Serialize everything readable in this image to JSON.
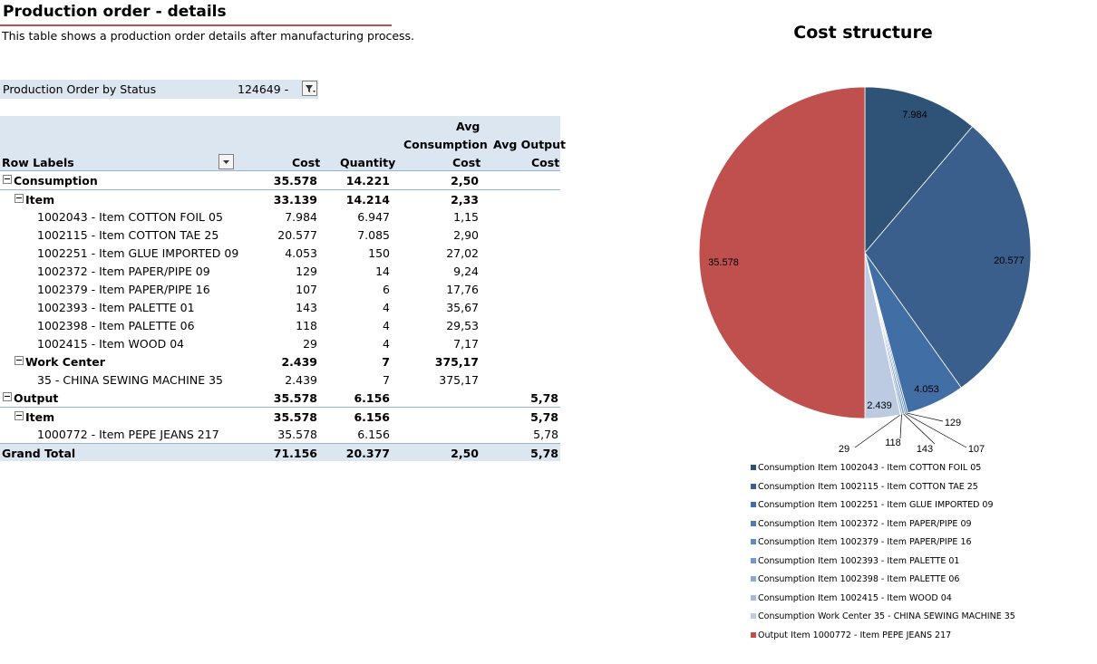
{
  "header": {
    "title": "Production order - details",
    "subtitle": "This table shows a production order details after manufacturing process."
  },
  "filter": {
    "label": "Production Order by Status",
    "value": "124649 -"
  },
  "pivot": {
    "headers": {
      "row_labels": "Row Labels",
      "cost": "Cost",
      "quantity": "Quantity",
      "avg_consumption_line1": "Avg",
      "avg_consumption_line2": "Consumption",
      "avg_consumption_line3": "Cost",
      "avg_output_line1": "Avg Output",
      "avg_output_line2": "Cost"
    },
    "rows": [
      {
        "label": "Consumption",
        "cost": "35.578",
        "qty": "14.221",
        "avg_c": "2,50",
        "avg_o": ""
      },
      {
        "label": "Item",
        "cost": "33.139",
        "qty": "14.214",
        "avg_c": "2,33",
        "avg_o": ""
      },
      {
        "label": "1002043 - Item COTTON FOIL 05",
        "cost": "7.984",
        "qty": "6.947",
        "avg_c": "1,15",
        "avg_o": ""
      },
      {
        "label": "1002115 - Item COTTON TAE 25",
        "cost": "20.577",
        "qty": "7.085",
        "avg_c": "2,90",
        "avg_o": ""
      },
      {
        "label": "1002251 - Item GLUE IMPORTED 09",
        "cost": "4.053",
        "qty": "150",
        "avg_c": "27,02",
        "avg_o": ""
      },
      {
        "label": "1002372 - Item PAPER/PIPE 09",
        "cost": "129",
        "qty": "14",
        "avg_c": "9,24",
        "avg_o": ""
      },
      {
        "label": "1002379 - Item PAPER/PIPE 16",
        "cost": "107",
        "qty": "6",
        "avg_c": "17,76",
        "avg_o": ""
      },
      {
        "label": "1002393 - Item PALETTE 01",
        "cost": "143",
        "qty": "4",
        "avg_c": "35,67",
        "avg_o": ""
      },
      {
        "label": "1002398 - Item PALETTE 06",
        "cost": "118",
        "qty": "4",
        "avg_c": "29,53",
        "avg_o": ""
      },
      {
        "label": "1002415 - Item WOOD 04",
        "cost": "29",
        "qty": "4",
        "avg_c": "7,17",
        "avg_o": ""
      },
      {
        "label": "Work Center",
        "cost": "2.439",
        "qty": "7",
        "avg_c": "375,17",
        "avg_o": ""
      },
      {
        "label": "35 - CHINA SEWING MACHINE 35",
        "cost": "2.439",
        "qty": "7",
        "avg_c": "375,17",
        "avg_o": ""
      },
      {
        "label": "Output",
        "cost": "35.578",
        "qty": "6.156",
        "avg_c": "",
        "avg_o": "5,78"
      },
      {
        "label": "Item",
        "cost": "35.578",
        "qty": "6.156",
        "avg_c": "",
        "avg_o": "5,78"
      },
      {
        "label": "1000772 - Item PEPE JEANS 217",
        "cost": "35.578",
        "qty": "6.156",
        "avg_c": "",
        "avg_o": "5,78"
      },
      {
        "label": "Grand Total",
        "cost": "71.156",
        "qty": "20.377",
        "avg_c": "2,50",
        "avg_o": "5,78"
      }
    ]
  },
  "chart_data": {
    "type": "pie",
    "title": "Cost structure",
    "slices": [
      {
        "name": "Consumption Item 1002043 - Item COTTON FOIL 05",
        "value": 7984,
        "label": "7.984",
        "color": "#2f5377"
      },
      {
        "name": "Consumption Item 1002115 - Item COTTON TAE 25",
        "value": 20577,
        "label": "20.577",
        "color": "#3a5f8c"
      },
      {
        "name": "Consumption Item 1002251 - Item GLUE IMPORTED 09",
        "value": 4053,
        "label": "4.053",
        "color": "#426ea6"
      },
      {
        "name": "Consumption Item 1002372 - Item PAPER/PIPE 09",
        "value": 129,
        "label": "129",
        "color": "#4f7cb5"
      },
      {
        "name": "Consumption Item 1002379 - Item PAPER/PIPE 16",
        "value": 107,
        "label": "107",
        "color": "#5f8bc1"
      },
      {
        "name": "Consumption Item 1002393 - Item PALETTE 01",
        "value": 143,
        "label": "143",
        "color": "#7399cb"
      },
      {
        "name": "Consumption Item 1002398 - Item PALETTE 06",
        "value": 118,
        "label": "118",
        "color": "#8aaad4"
      },
      {
        "name": "Consumption Item 1002415 - Item WOOD 04",
        "value": 29,
        "label": "29",
        "color": "#a2badc"
      },
      {
        "name": "Consumption Work Center 35 - CHINA SEWING MACHINE 35",
        "value": 2439,
        "label": "2.439",
        "color": "#bccae2"
      },
      {
        "name": "Output Item 1000772 - Item PEPE JEANS 217",
        "value": 35578,
        "label": "35.578",
        "color": "#c0504d"
      }
    ]
  }
}
